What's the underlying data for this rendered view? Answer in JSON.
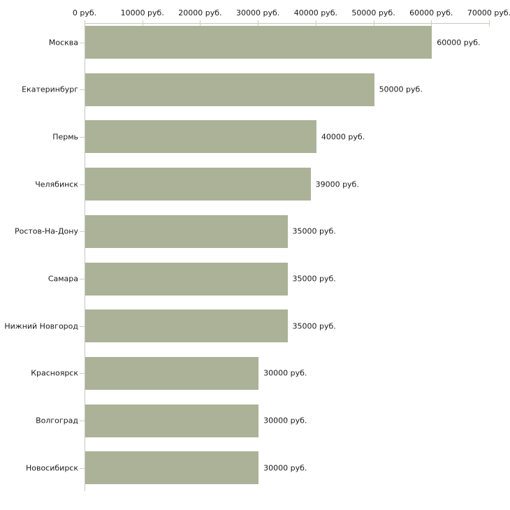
{
  "chart_data": {
    "type": "bar",
    "orientation": "horizontal",
    "title": "",
    "categories": [
      "Москва",
      "Екатеринбург",
      "Пермь",
      "Челябинск",
      "Ростов-На-Дону",
      "Самара",
      "Нижний Новгород",
      "Красноярск",
      "Волгоград",
      "Новосибирск"
    ],
    "values": [
      60000,
      50000,
      40000,
      39000,
      35000,
      35000,
      35000,
      30000,
      30000,
      30000
    ],
    "value_labels": [
      "60000 руб.",
      "50000 руб.",
      "40000 руб.",
      "39000 руб.",
      "35000 руб.",
      "35000 руб.",
      "35000 руб.",
      "30000 руб.",
      "30000 руб.",
      "30000 руб."
    ],
    "unit": "руб.",
    "xlabel": "",
    "ylabel": "",
    "x_axis": {
      "position": "top",
      "min": 0,
      "max": 70000,
      "tick_interval": 10000,
      "tick_labels": [
        "0 руб.",
        "10000 руб.",
        "20000 руб.",
        "30000 руб.",
        "40000 руб.",
        "50000 руб.",
        "60000 руб.",
        "70000 руб."
      ]
    },
    "legend": "none",
    "grid": "off",
    "colors": {
      "bar": "#abb297",
      "axis_line": "#c6c6c6",
      "tick": "#d2d0ab",
      "text": "#1a1a1a",
      "background": "#ffffff"
    }
  }
}
